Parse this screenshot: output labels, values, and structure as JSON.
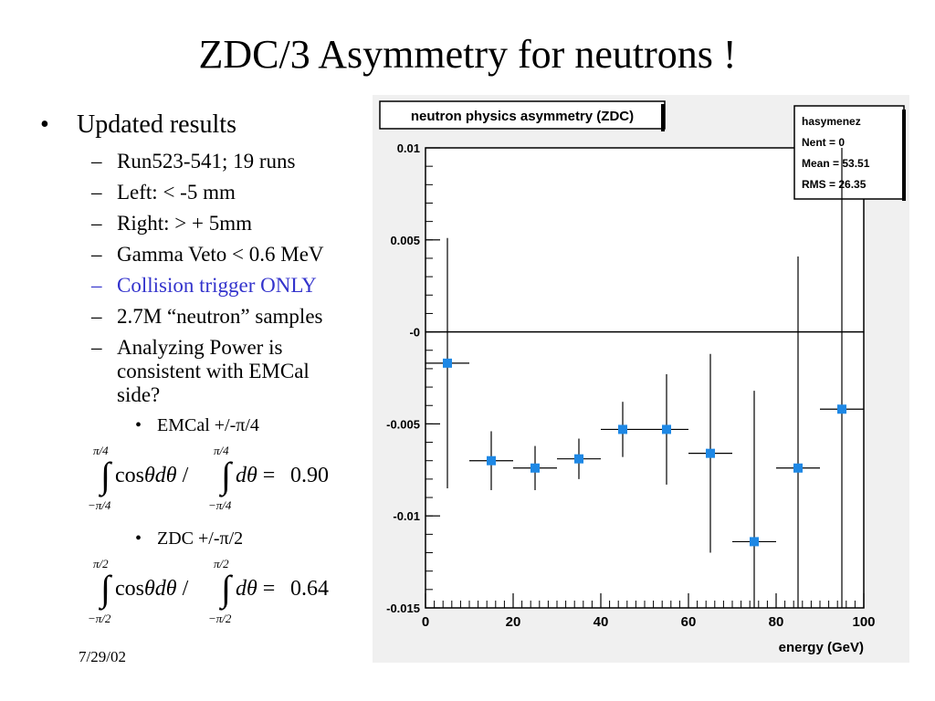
{
  "slide": {
    "title": "ZDC/3 Asymmetry for neutrons !",
    "date": "7/29/02"
  },
  "bullets": {
    "main": "Updated results",
    "items": [
      "Run523-541; 19 runs",
      "Left: < -5 mm",
      "Right: > + 5mm",
      "Gamma Veto < 0.6 MeV",
      "Collision trigger ONLY",
      "2.7M “neutron” samples",
      "Analyzing Power is consistent with EMCal side?"
    ],
    "sub1": "EMCal +/-π/4",
    "sub2": "ZDC +/-π/2"
  },
  "formulas": [
    {
      "upper": "π/4",
      "lower": "−π/4",
      "value": "0.90"
    },
    {
      "upper": "π/2",
      "lower": "−π/2",
      "value": "0.64"
    }
  ],
  "colors": {
    "highlight": "#3333cc",
    "marker": "#1e88e5",
    "canvas": "#f0f0f0"
  },
  "chart_data": {
    "type": "scatter",
    "title": "neutron physics asymmetry (ZDC)",
    "xlabel": "energy (GeV)",
    "ylabel": "",
    "xlim": [
      0,
      100
    ],
    "ylim": [
      -0.015,
      0.01
    ],
    "x_ticks": [
      "0",
      "20",
      "40",
      "60",
      "80",
      "100"
    ],
    "y_ticks": [
      "0.01",
      "0.005",
      "-0",
      "-0.005",
      "-0.01",
      "-0.015"
    ],
    "stats": [
      {
        "label": "hasymenez"
      },
      {
        "label": "Nent = 0"
      },
      {
        "label": "Mean  =  53.51"
      },
      {
        "label": "RMS   =  26.35"
      }
    ],
    "points": [
      {
        "x": 5,
        "xerr": 5,
        "y": -0.0017,
        "yerr_lo": 0.0068,
        "yerr_hi": 0.0068
      },
      {
        "x": 15,
        "xerr": 5,
        "y": -0.007,
        "yerr_lo": 0.0016,
        "yerr_hi": 0.0016
      },
      {
        "x": 25,
        "xerr": 5,
        "y": -0.0074,
        "yerr_lo": 0.0012,
        "yerr_hi": 0.0012
      },
      {
        "x": 35,
        "xerr": 5,
        "y": -0.0069,
        "yerr_lo": 0.0011,
        "yerr_hi": 0.0011
      },
      {
        "x": 45,
        "xerr": 5,
        "y": -0.0053,
        "yerr_lo": 0.0015,
        "yerr_hi": 0.0015
      },
      {
        "x": 55,
        "xerr": 5,
        "y": -0.0053,
        "yerr_lo": 0.003,
        "yerr_hi": 0.003
      },
      {
        "x": 65,
        "xerr": 5,
        "y": -0.0066,
        "yerr_lo": 0.0054,
        "yerr_hi": 0.0054
      },
      {
        "x": 75,
        "xerr": 5,
        "y": -0.0114,
        "yerr_lo": 0.0036,
        "yerr_hi": 0.0082
      },
      {
        "x": 85,
        "xerr": 5,
        "y": -0.0074,
        "yerr_lo": 0.0076,
        "yerr_hi": 0.0115
      },
      {
        "x": 95,
        "xerr": 5,
        "y": -0.0042,
        "yerr_lo": 0.0108,
        "yerr_hi": 0.0145
      }
    ]
  }
}
